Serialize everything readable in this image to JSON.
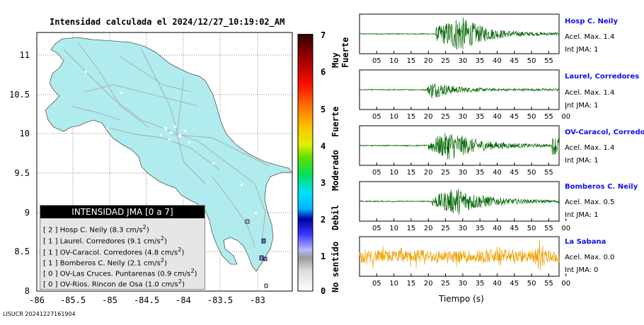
{
  "map": {
    "title": "Intensidad calculada el 2024/12/27_10:19:02_AM",
    "y_ticks": [
      "11",
      "10.5",
      "10",
      "9.5",
      "9",
      "8.5",
      "8"
    ],
    "x_ticks": [
      "-86",
      "-85.5",
      "-85",
      "-84.5",
      "-84",
      "-83.5",
      "-83"
    ],
    "legend": {
      "title": "INTENSIDAD JMA [0 a 7]",
      "rows": [
        {
          "jma": "[ 2 ]",
          "station": "Hosp C. Neily",
          "accel": "(8.3 cm/s",
          "sup": "2",
          "close": ")"
        },
        {
          "jma": "[ 1 ]",
          "station": "Laurel. Corredores",
          "accel": "(9.1 cm/s",
          "sup": "2",
          "close": ")"
        },
        {
          "jma": "[ 1 ]",
          "station": "OV-Caracol. Corredores",
          "accel": "(4.8 cm/s",
          "sup": "2",
          "close": ")"
        },
        {
          "jma": "[ 1 ]",
          "station": "Bomberos C. Neily",
          "accel": "(2.1 cm/s",
          "sup": "2",
          "close": ")"
        },
        {
          "jma": "[ 0 ]",
          "station": "OV-Las Cruces. Puntarenas",
          "accel": "(0.9 cm/s",
          "sup": "2",
          "close": ")"
        },
        {
          "jma": "[ 0 ]",
          "station": "OV-Rios. Rincon de Osa",
          "accel": "(1.0 cm/s",
          "sup": "2",
          "close": ")"
        }
      ]
    }
  },
  "colorbar": {
    "ticks": [
      "7",
      "6",
      "5",
      "4",
      "3",
      "2",
      "1",
      "0"
    ],
    "labels": [
      "Muy Fuerte",
      "Fuerte",
      "Moderado",
      "Debil",
      "No sentido"
    ]
  },
  "waveforms": {
    "xlabel": "Tiempo (s)",
    "stations": [
      {
        "name": "Hosp C. Neily",
        "accel": "Acel. Max. 1.4",
        "jma": "Int JMA: 1",
        "ticks": [
          "05",
          "10",
          "15",
          "20",
          "25",
          "30",
          "35",
          "40",
          "45",
          "50",
          "55"
        ],
        "color": "#006400"
      },
      {
        "name": "Laurel, Corredores",
        "accel": "Acel. Max. 1.4",
        "jma": "Int JMA: 1",
        "ticks": [
          "05",
          "10",
          "15",
          "20",
          "25",
          "30",
          "35",
          "40",
          "45",
          "50",
          "55",
          "00"
        ],
        "color": "#006400"
      },
      {
        "name": "OV-Caracol, Corredore",
        "accel": "Acel. Max. 1.4",
        "jma": "Int JMA: 1",
        "ticks": [
          "05",
          "10",
          "15",
          "20",
          "25",
          "30",
          "35",
          "40",
          "45",
          "50",
          "55"
        ],
        "color": "#006400"
      },
      {
        "name": "Bomberos C. Neily",
        "accel": "Acel. Max. 0.5",
        "jma": "Int JMA: 1",
        "ticks": [
          "05",
          "10",
          "15",
          "20",
          "25",
          "30",
          "35",
          "40",
          "45",
          "50",
          "55",
          "00"
        ],
        "color": "#006400"
      },
      {
        "name": "La Sabana",
        "accel": "Acel. Max. 0.0",
        "jma": "Int JMA: 0",
        "ticks": [
          "05",
          "10",
          "15",
          "20",
          "25",
          "30",
          "35",
          "40",
          "45",
          "50",
          "55",
          "00"
        ],
        "color": "#f0a000"
      }
    ]
  },
  "footer": "LISUCR 20241227161904",
  "chart_data": [
    {
      "type": "map",
      "title": "Intensidad calculada el 2024/12/27_10:19:02_AM",
      "xlim": [
        -86.0,
        -82.5
      ],
      "ylim": [
        8.0,
        11.3
      ],
      "stations": [
        {
          "name": "Hosp C. Neily",
          "jma": 2,
          "pga_cm_s2": 8.3
        },
        {
          "name": "Laurel. Corredores",
          "jma": 1,
          "pga_cm_s2": 9.1
        },
        {
          "name": "OV-Caracol. Corredores",
          "jma": 1,
          "pga_cm_s2": 4.8
        },
        {
          "name": "Bomberos C. Neily",
          "jma": 1,
          "pga_cm_s2": 2.1
        },
        {
          "name": "OV-Las Cruces. Puntarenas",
          "jma": 0,
          "pga_cm_s2": 0.9
        },
        {
          "name": "OV-Rios. Rincon de Osa",
          "jma": 0,
          "pga_cm_s2": 1.0
        }
      ],
      "colorbar_range": [
        0,
        7
      ]
    },
    {
      "type": "line",
      "xlabel": "Tiempo (s)",
      "series": [
        {
          "name": "Hosp C. Neily",
          "peak_accel": 1.4,
          "jma": 1,
          "onset_s": 22
        },
        {
          "name": "Laurel, Corredores",
          "peak_accel": 1.4,
          "jma": 1,
          "onset_s": 20
        },
        {
          "name": "OV-Caracol, Corredore",
          "peak_accel": 1.4,
          "jma": 1,
          "onset_s": 20
        },
        {
          "name": "Bomberos C. Neily",
          "peak_accel": 0.5,
          "jma": 1,
          "onset_s": 21
        },
        {
          "name": "La Sabana",
          "peak_accel": 0.0,
          "jma": 0,
          "onset_s": 0
        }
      ]
    }
  ]
}
